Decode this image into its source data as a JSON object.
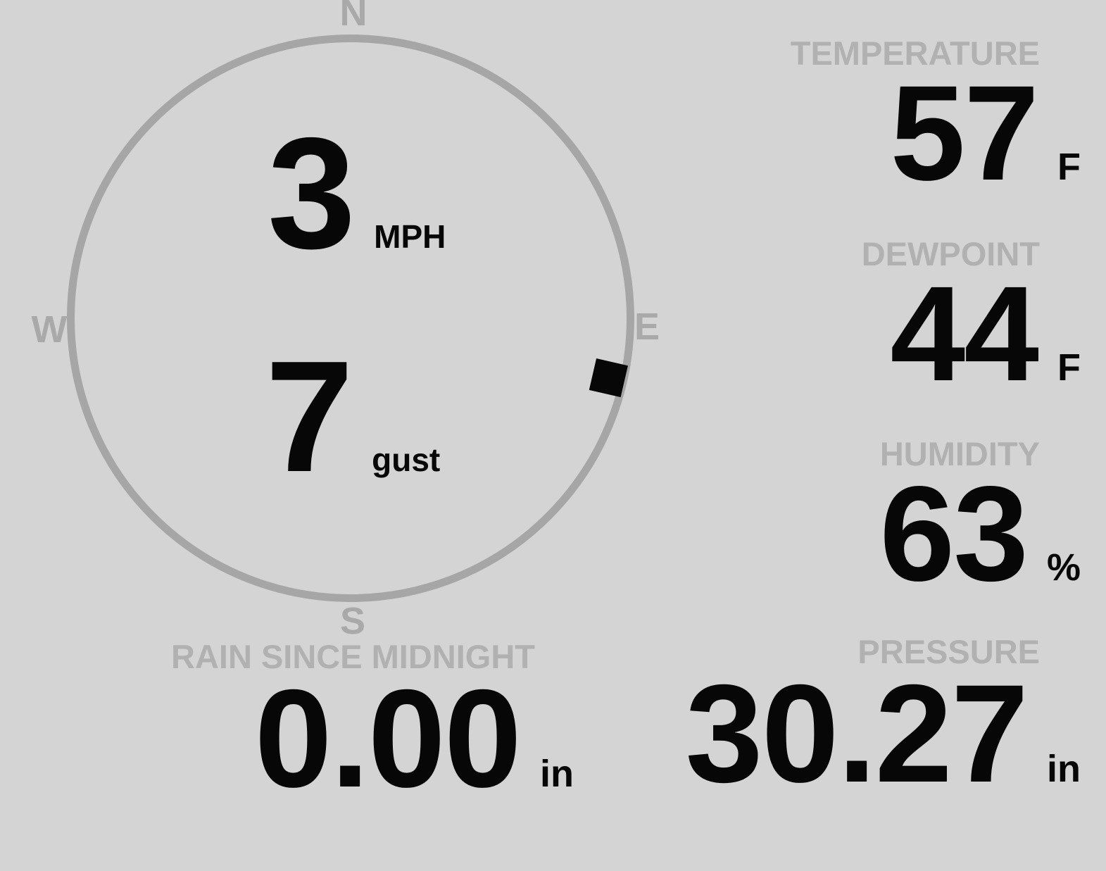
{
  "colors": {
    "background": "#d4d4d4",
    "muted_text": "#b1b1b1",
    "compass_ring": "#a6a6a6",
    "value_text": "#070707"
  },
  "compass": {
    "north": "N",
    "east": "E",
    "south": "S",
    "west": "W",
    "direction_deg": 103
  },
  "wind": {
    "speed": "3",
    "speed_unit": "MPH",
    "gust": "7",
    "gust_unit": "gust"
  },
  "metrics": {
    "temperature": {
      "label": "TEMPERATURE",
      "value": "57",
      "unit": "F"
    },
    "dewpoint": {
      "label": "DEWPOINT",
      "value": "44",
      "unit": "F"
    },
    "humidity": {
      "label": "HUMIDITY",
      "value": "63",
      "unit": "%"
    },
    "rain": {
      "label": "RAIN SINCE MIDNIGHT",
      "value": "0.00",
      "unit": "in"
    },
    "pressure": {
      "label": "PRESSURE",
      "value": "30.27",
      "unit": "in"
    }
  }
}
